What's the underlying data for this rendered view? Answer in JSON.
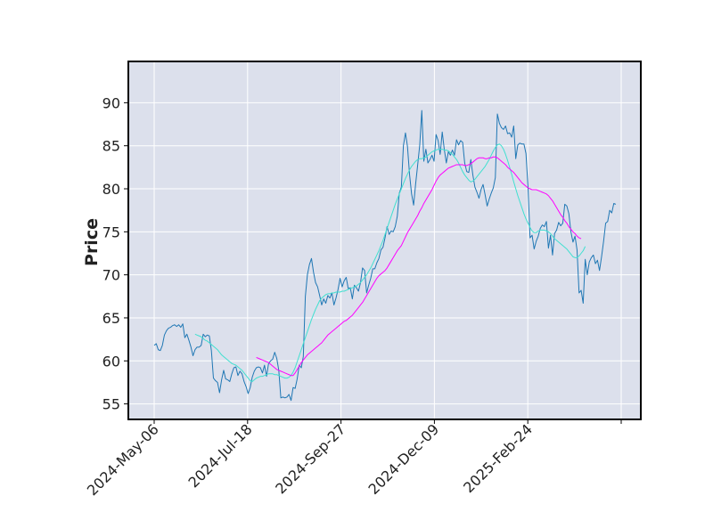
{
  "chart_data": {
    "type": "line",
    "title": "",
    "xlabel": "",
    "ylabel": "Price",
    "x_tick_labels": [
      "2024-May-06",
      "2024-Jul-18",
      "2024-Sep-27",
      "2024-Dec-09",
      "2025-Feb-24"
    ],
    "y_ticks": [
      55,
      60,
      65,
      70,
      75,
      80,
      85,
      90
    ],
    "ylim": [
      53.2,
      94.8
    ],
    "grid": true,
    "legend": "none",
    "colors": {
      "background": "#dce0ec",
      "grid": "#ffffff",
      "price": "#1f77b4",
      "ma_short": "#40e0d0",
      "ma_long": "#ff00ff",
      "frame": "#000000"
    },
    "series": [
      {
        "key": "price",
        "x_start": "2024-May-06",
        "values": [
          61.8,
          62.0,
          61.3,
          61.2,
          61.8,
          63.0,
          63.5,
          63.8,
          63.9,
          64.1,
          64.2,
          64.0,
          64.2,
          63.9,
          64.3,
          62.7,
          63.1,
          62.4,
          61.6,
          60.6,
          61.3,
          61.6,
          61.6,
          61.8,
          63.1,
          62.8,
          63.0,
          62.9,
          61.2,
          58.0,
          57.7,
          57.5,
          56.3,
          57.8,
          58.9,
          57.9,
          57.8,
          57.6,
          58.5,
          59.2,
          59.3,
          58.3,
          58.8,
          58.5,
          57.6,
          57.0,
          56.2,
          56.9,
          58.1,
          58.8,
          59.2,
          59.3,
          59.2,
          58.6,
          59.5,
          58.2,
          59.7,
          60.0,
          60.2,
          61.0,
          60.3,
          58.9,
          55.7,
          55.8,
          55.7,
          55.8,
          56.1,
          55.4,
          56.9,
          56.8,
          57.9,
          59.5,
          59.2,
          60.5,
          67.5,
          70.0,
          71.2,
          71.9,
          70.3,
          69.1,
          68.6,
          67.6,
          66.5,
          67.2,
          66.7,
          67.6,
          67.3,
          67.9,
          66.5,
          67.3,
          68.3,
          69.6,
          68.6,
          69.3,
          69.7,
          68.4,
          68.5,
          67.2,
          68.8,
          68.5,
          68.1,
          69.1,
          70.8,
          70.5,
          67.9,
          68.8,
          69.6,
          70.7,
          70.7,
          71.4,
          71.9,
          72.9,
          73.2,
          74.3,
          75.6,
          74.7,
          75.1,
          75.0,
          75.6,
          76.8,
          79.5,
          80.2,
          85.0,
          86.5,
          84.9,
          81.7,
          79.4,
          78.1,
          80.6,
          82.8,
          85.1,
          89.1,
          83.2,
          84.6,
          83.0,
          83.4,
          83.9,
          83.2,
          86.3,
          85.6,
          84.0,
          86.6,
          84.6,
          83.0,
          84.3,
          83.9,
          84.5,
          83.9,
          85.7,
          85.1,
          85.6,
          85.4,
          83.0,
          82.0,
          81.9,
          83.4,
          81.6,
          80.2,
          79.6,
          78.9,
          79.9,
          80.5,
          79.3,
          78.0,
          78.8,
          79.5,
          80.1,
          81.3,
          88.7,
          87.6,
          87.1,
          86.9,
          87.3,
          86.4,
          86.5,
          86.0,
          87.3,
          83.5,
          85.1,
          85.3,
          85.2,
          85.2,
          84.1,
          80.2,
          74.3,
          74.6,
          73.0,
          73.9,
          74.5,
          75.4,
          75.8,
          75.6,
          76.2,
          73.1,
          74.6,
          72.3,
          74.8,
          75.2,
          76.1,
          75.7,
          76.0,
          78.2,
          78.0,
          77.1,
          75.0,
          73.8,
          74.5,
          72.9,
          67.9,
          68.2,
          66.7,
          71.8,
          70.0,
          71.5,
          72.0,
          72.3,
          71.3,
          71.7,
          70.5,
          72.1,
          73.9,
          76.0,
          76.2,
          77.5,
          77.2,
          78.3,
          78.2
        ]
      },
      {
        "key": "ma_short",
        "x_start_index": 20,
        "values": [
          63.1,
          63.0,
          62.9,
          62.8,
          62.6,
          62.4,
          62.3,
          62.1,
          61.9,
          61.7,
          61.5,
          61.3,
          61.0,
          60.7,
          60.5,
          60.3,
          60.1,
          59.9,
          59.7,
          59.6,
          59.5,
          59.3,
          59.1,
          58.9,
          58.6,
          58.3,
          58.0,
          57.7,
          57.6,
          57.8,
          58.0,
          58.1,
          58.2,
          58.2,
          58.3,
          58.4,
          58.5,
          58.5,
          58.5,
          58.4,
          58.4,
          58.3,
          58.2,
          58.1,
          58.0,
          58.0,
          58.1,
          58.3,
          58.7,
          59.2,
          59.9,
          60.6,
          61.3,
          62.0,
          62.7,
          63.4,
          64.1,
          64.8,
          65.4,
          66.0,
          66.5,
          67.0,
          67.3,
          67.5,
          67.7,
          67.8,
          67.8,
          67.9,
          67.9,
          68.0,
          68.0,
          68.0,
          68.1,
          68.1,
          68.2,
          68.3,
          68.4,
          68.5,
          68.6,
          68.7,
          68.9,
          69.1,
          69.4,
          69.7,
          70.0,
          70.4,
          70.8,
          71.3,
          71.8,
          72.3,
          72.8,
          73.4,
          74.0,
          74.7,
          75.4,
          76.1,
          76.8,
          77.5,
          78.2,
          78.8,
          79.4,
          80.0,
          80.6,
          81.2,
          81.7,
          82.2,
          82.6,
          82.9,
          83.2,
          83.4,
          83.5,
          83.5,
          83.6,
          83.7,
          83.9,
          84.1,
          84.3,
          84.4,
          84.5,
          84.6,
          84.6,
          84.6,
          84.5,
          84.5,
          84.4,
          84.2,
          84.0,
          83.7,
          83.4,
          83.0,
          82.5,
          82.0,
          81.6,
          81.3,
          81.0,
          80.8,
          80.9,
          81.1,
          81.4,
          81.7,
          82.0,
          82.3,
          82.6,
          83.0,
          83.4,
          83.9,
          84.4,
          84.8,
          85.1,
          85.2,
          85.0,
          84.6,
          84.0,
          83.3,
          82.5,
          81.7,
          80.8,
          80.0,
          79.2,
          78.5,
          77.8,
          77.1,
          76.5,
          76.0,
          75.5,
          75.1,
          74.9,
          74.9,
          75.1,
          75.2,
          75.2,
          75.2,
          75.1,
          75.0,
          74.8,
          74.5,
          74.2,
          74.0,
          73.8,
          73.6,
          73.4,
          73.2,
          73.0,
          72.7,
          72.4,
          72.1,
          72.0,
          72.0,
          72.2,
          72.5,
          72.8,
          73.3
        ]
      },
      {
        "key": "ma_long",
        "x_start_index": 50,
        "values": [
          60.4,
          60.3,
          60.2,
          60.1,
          60.0,
          59.9,
          59.8,
          59.6,
          59.4,
          59.2,
          59.0,
          58.9,
          58.8,
          58.7,
          58.6,
          58.5,
          58.4,
          58.3,
          58.3,
          58.6,
          59.0,
          59.4,
          59.8,
          60.1,
          60.4,
          60.7,
          60.9,
          61.1,
          61.3,
          61.5,
          61.7,
          61.9,
          62.1,
          62.4,
          62.7,
          63.0,
          63.2,
          63.4,
          63.6,
          63.8,
          64.0,
          64.2,
          64.4,
          64.6,
          64.7,
          64.9,
          65.1,
          65.3,
          65.6,
          65.9,
          66.2,
          66.5,
          66.8,
          67.2,
          67.6,
          68.0,
          68.4,
          68.8,
          69.2,
          69.6,
          69.9,
          70.1,
          70.3,
          70.5,
          70.8,
          71.2,
          71.6,
          72.0,
          72.4,
          72.8,
          73.1,
          73.4,
          73.9,
          74.4,
          74.9,
          75.3,
          75.7,
          76.1,
          76.5,
          76.9,
          77.4,
          77.8,
          78.3,
          78.7,
          79.1,
          79.5,
          79.9,
          80.4,
          80.9,
          81.3,
          81.6,
          81.8,
          82.0,
          82.2,
          82.4,
          82.5,
          82.6,
          82.7,
          82.8,
          82.8,
          82.8,
          82.8,
          82.7,
          82.7,
          82.8,
          82.9,
          83.1,
          83.3,
          83.5,
          83.6,
          83.6,
          83.6,
          83.5,
          83.5,
          83.6,
          83.6,
          83.7,
          83.7,
          83.6,
          83.4,
          83.2,
          83.0,
          82.8,
          82.5,
          82.3,
          82.1,
          81.9,
          81.6,
          81.3,
          81.0,
          80.7,
          80.5,
          80.3,
          80.1,
          80.0,
          79.9,
          79.9,
          79.9,
          79.8,
          79.7,
          79.6,
          79.5,
          79.4,
          79.2,
          78.9,
          78.6,
          78.2,
          77.8,
          77.4,
          77.0,
          76.7,
          76.3,
          76.0,
          75.6,
          75.3,
          75.0,
          74.8,
          74.5,
          74.3,
          74.2
        ]
      }
    ]
  }
}
